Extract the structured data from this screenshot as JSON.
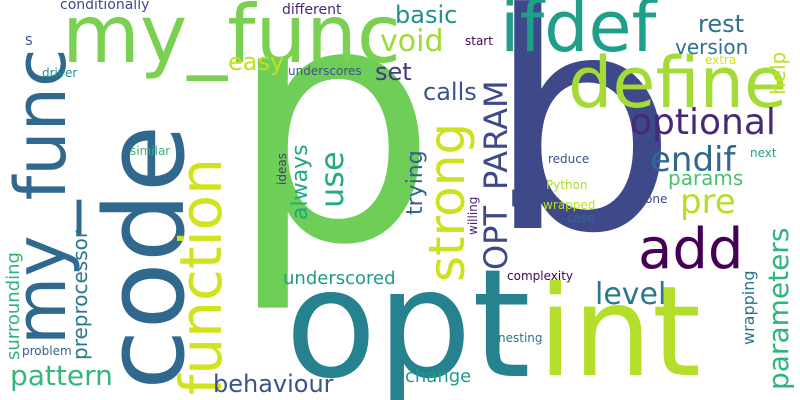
{
  "words": [
    {
      "text": "p",
      "color": "#6ece58"
    },
    {
      "text": "b",
      "color": "#3e4989"
    },
    {
      "text": "opt",
      "color": "#26828e"
    },
    {
      "text": "int",
      "color": "#b5de2b"
    },
    {
      "text": "code",
      "color": "#31688e"
    },
    {
      "text": "my_func",
      "color": "#7ad151"
    },
    {
      "text": "ifdef",
      "color": "#1f9e89"
    },
    {
      "text": "define",
      "color": "#a5db36"
    },
    {
      "text": "my_func",
      "color": "#31688e"
    },
    {
      "text": "function",
      "color": "#d2e21b"
    },
    {
      "text": "add",
      "color": "#440154"
    },
    {
      "text": "strong",
      "color": "#cde11d"
    },
    {
      "text": "optional",
      "color": "#482878"
    },
    {
      "text": "OPT_PARAM",
      "color": "#3e4989"
    },
    {
      "text": "endif",
      "color": "#31688e"
    },
    {
      "text": "pre",
      "color": "#b5de2b"
    },
    {
      "text": "use",
      "color": "#25ab82"
    },
    {
      "text": "level",
      "color": "#2a788e"
    },
    {
      "text": "parameters",
      "color": "#2fb47c"
    },
    {
      "text": "pattern",
      "color": "#35b779"
    },
    {
      "text": "behaviour",
      "color": "#3b528b"
    },
    {
      "text": "void",
      "color": "#a0da39"
    },
    {
      "text": "basic",
      "color": "#21918c"
    },
    {
      "text": "calls",
      "color": "#3b528b"
    },
    {
      "text": "set",
      "color": "#443983"
    },
    {
      "text": "easy",
      "color": "#c2df23"
    },
    {
      "text": "rest",
      "color": "#2c728e"
    },
    {
      "text": "version",
      "color": "#2c728e"
    },
    {
      "text": "help",
      "color": "#c2df23"
    },
    {
      "text": "params",
      "color": "#4ac16d"
    },
    {
      "text": "always",
      "color": "#22a884"
    },
    {
      "text": "trying",
      "color": "#33638d"
    },
    {
      "text": "preprocessor",
      "color": "#2a788e"
    },
    {
      "text": "surrounding",
      "color": "#2fb47c"
    },
    {
      "text": "underscored",
      "color": "#1e9b8a"
    },
    {
      "text": "change",
      "color": "#1f9e89"
    },
    {
      "text": "wrapping",
      "color": "#2c728e"
    },
    {
      "text": "conditionally",
      "color": "#3e4a89"
    },
    {
      "text": "different",
      "color": "#482878"
    },
    {
      "text": "S",
      "color": "#3e4a89"
    },
    {
      "text": "driver",
      "color": "#21918c"
    },
    {
      "text": "underscores",
      "color": "#3b528b"
    },
    {
      "text": "start",
      "color": "#440154"
    },
    {
      "text": "extra",
      "color": "#d8e219"
    },
    {
      "text": "similar",
      "color": "#35b779"
    },
    {
      "text": "ideas",
      "color": "#443983"
    },
    {
      "text": "reduce",
      "color": "#3b528b"
    },
    {
      "text": "Python",
      "color": "#a5db36"
    },
    {
      "text": "wrapped",
      "color": "#bddf26"
    },
    {
      "text": "willing",
      "color": "#481f70"
    },
    {
      "text": "next",
      "color": "#1fa187"
    },
    {
      "text": "one",
      "color": "#3e4989"
    },
    {
      "text": "case",
      "color": "#31688e"
    },
    {
      "text": "complexity",
      "color": "#440154"
    },
    {
      "text": "nesting",
      "color": "#2c728e"
    },
    {
      "text": "problem",
      "color": "#35608d"
    }
  ]
}
